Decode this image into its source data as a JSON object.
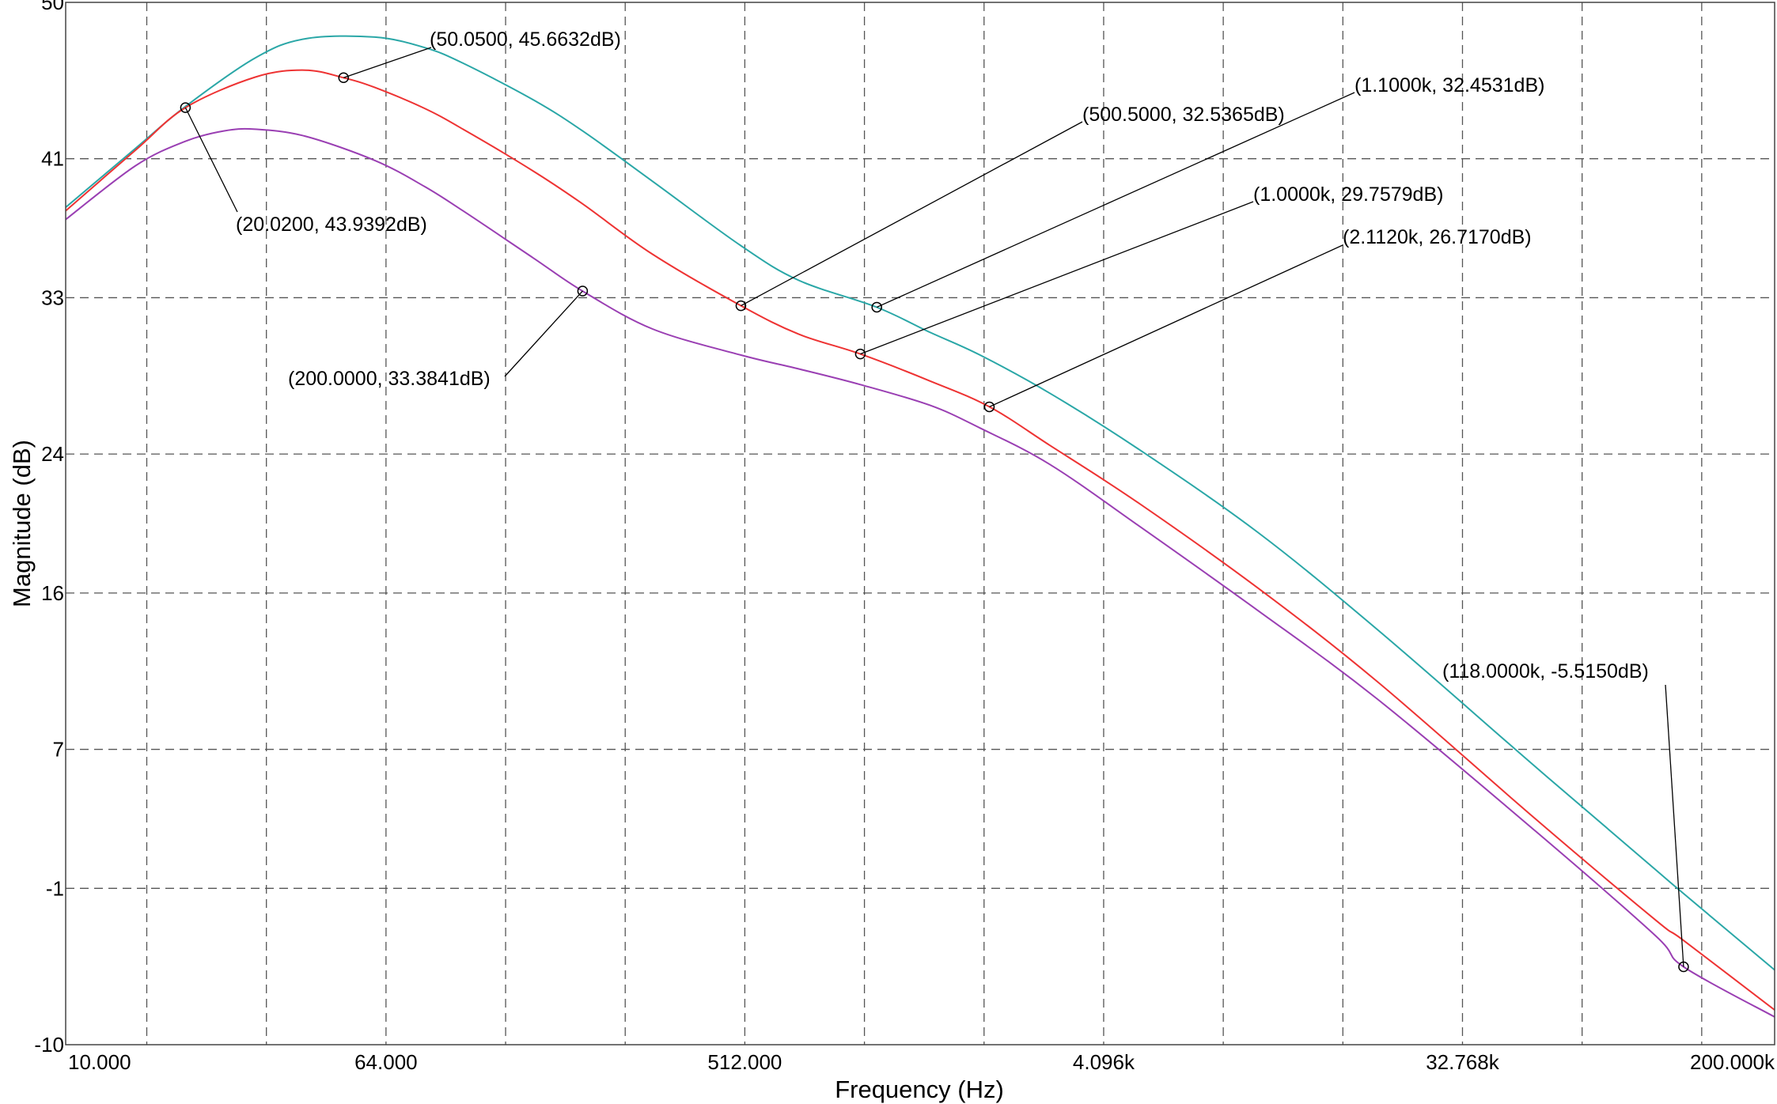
{
  "chart_data": {
    "type": "line",
    "xscale": "log2",
    "xlim": [
      10,
      200000
    ],
    "ylim": [
      -10,
      50
    ],
    "xlabel": "Frequency (Hz)",
    "ylabel": "Magnitude (dB)",
    "grid": true,
    "y_ticks": [
      {
        "value": 50,
        "label": "50"
      },
      {
        "value": 41,
        "label": "41"
      },
      {
        "value": 33,
        "label": "33"
      },
      {
        "value": 24,
        "label": "24"
      },
      {
        "value": 16,
        "label": "16"
      },
      {
        "value": 7,
        "label": "7"
      },
      {
        "value": -1,
        "label": "-1"
      },
      {
        "value": -10,
        "label": "-10"
      }
    ],
    "x_ticks": [
      {
        "value": 10,
        "label": "10.000"
      },
      {
        "value": 64,
        "label": "64.000"
      },
      {
        "value": 512,
        "label": "512.000"
      },
      {
        "value": 4096,
        "label": "4.096k"
      },
      {
        "value": 32768,
        "label": "32.768k"
      },
      {
        "value": 200000,
        "label": "200.000k"
      }
    ],
    "x_minor_grid": [
      16,
      32,
      128,
      256,
      1024,
      2048,
      8192,
      16384,
      65536,
      131072
    ],
    "series": [
      {
        "color": "#2aa7a7",
        "points": [
          [
            10,
            38.2
          ],
          [
            15,
            41.6
          ],
          [
            20,
            44.0
          ],
          [
            30,
            46.8
          ],
          [
            40,
            47.9
          ],
          [
            60,
            48.0
          ],
          [
            80,
            47.4
          ],
          [
            100,
            46.5
          ],
          [
            150,
            44.4
          ],
          [
            200,
            42.6
          ],
          [
            300,
            39.7
          ],
          [
            500,
            36.0
          ],
          [
            700,
            34.0
          ],
          [
            1100,
            32.45
          ],
          [
            1500,
            31.0
          ],
          [
            2000,
            29.7
          ],
          [
            3000,
            27.5
          ],
          [
            5000,
            24.3
          ],
          [
            10000,
            19.5
          ],
          [
            20000,
            13.9
          ],
          [
            50000,
            6.0
          ],
          [
            100000,
            0.1
          ],
          [
            118000,
            -1.3
          ],
          [
            200000,
            -5.7
          ]
        ]
      },
      {
        "color": "#ee3333",
        "points": [
          [
            10,
            38.0
          ],
          [
            15,
            41.5
          ],
          [
            20.02,
            43.94
          ],
          [
            30,
            45.7
          ],
          [
            40,
            46.1
          ],
          [
            50.05,
            45.66
          ],
          [
            60,
            45.1
          ],
          [
            80,
            43.9
          ],
          [
            100,
            42.7
          ],
          [
            150,
            40.3
          ],
          [
            200,
            38.4
          ],
          [
            300,
            35.5
          ],
          [
            500.5,
            32.54
          ],
          [
            700,
            30.9
          ],
          [
            1000,
            29.76
          ],
          [
            1500,
            28.2
          ],
          [
            2112,
            26.72
          ],
          [
            3000,
            24.5
          ],
          [
            5000,
            21.2
          ],
          [
            10000,
            16.3
          ],
          [
            20000,
            10.9
          ],
          [
            50000,
            3.0
          ],
          [
            100000,
            -2.8
          ],
          [
            118000,
            -4.0
          ],
          [
            200000,
            -8.0
          ]
        ]
      },
      {
        "color": "#9a3fb3",
        "points": [
          [
            10,
            37.5
          ],
          [
            15,
            40.6
          ],
          [
            20,
            42.0
          ],
          [
            25,
            42.6
          ],
          [
            30,
            42.7
          ],
          [
            40,
            42.3
          ],
          [
            60,
            40.9
          ],
          [
            80,
            39.4
          ],
          [
            100,
            38.0
          ],
          [
            150,
            35.3
          ],
          [
            200,
            33.38
          ],
          [
            300,
            31.2
          ],
          [
            500,
            29.7
          ],
          [
            700,
            28.9
          ],
          [
            1000,
            28.0
          ],
          [
            1500,
            26.8
          ],
          [
            2000,
            25.5
          ],
          [
            3000,
            23.4
          ],
          [
            5000,
            19.9
          ],
          [
            10000,
            15.0
          ],
          [
            20000,
            9.9
          ],
          [
            50000,
            2.3
          ],
          [
            100000,
            -3.7
          ],
          [
            118000,
            -5.515
          ],
          [
            200000,
            -8.4
          ]
        ]
      }
    ],
    "annotations": [
      {
        "x": 50.05,
        "y": 45.6632,
        "label": "(50.0500, 45.6632dB)"
      },
      {
        "x": 20.02,
        "y": 43.9392,
        "label": "(20.0200, 43.9392dB)"
      },
      {
        "x": 1100,
        "y": 32.4531,
        "label": "(1.1000k, 32.4531dB)"
      },
      {
        "x": 500.5,
        "y": 32.5365,
        "label": "(500.5000, 32.5365dB)"
      },
      {
        "x": 1000,
        "y": 29.7579,
        "label": "(1.0000k, 29.7579dB)"
      },
      {
        "x": 2112,
        "y": 26.717,
        "label": "(2.1120k, 26.7170dB)"
      },
      {
        "x": 200,
        "y": 33.3841,
        "label": "(200.0000, 33.3841dB)"
      },
      {
        "x": 118000,
        "y": -5.515,
        "label": "(118.0000k, -5.5150dB)"
      }
    ]
  }
}
